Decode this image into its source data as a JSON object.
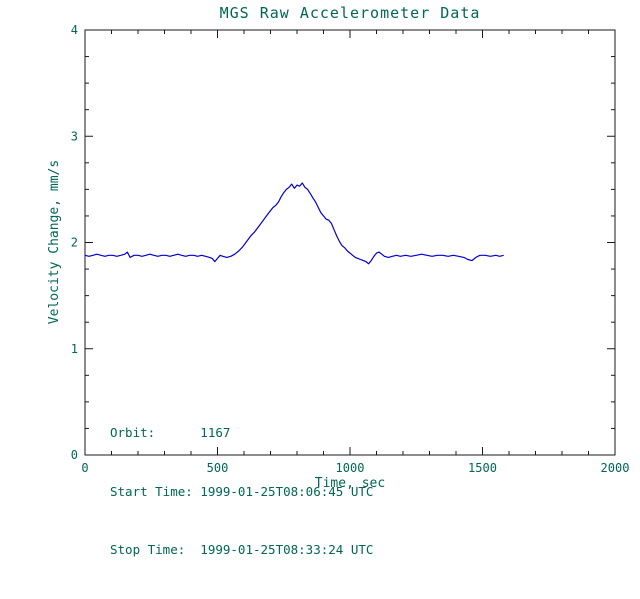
{
  "annotations": {
    "orbit": "Orbit:      1167",
    "start": "Start Time: 1999-01-25T08:06:45 UTC",
    "stop": "Stop Time:  1999-01-25T08:33:24 UTC"
  },
  "colors": {
    "background": "#ffffff",
    "text": "#006655",
    "axis": "#1a1a1a",
    "line": "#0000cc"
  },
  "chart_data": {
    "type": "line",
    "title": "MGS Raw Accelerometer Data",
    "xlabel": "Time, sec",
    "ylabel": "Velocity Change, mm/s",
    "xlim": [
      0,
      2000
    ],
    "ylim": [
      0,
      4
    ],
    "xticks": [
      0,
      500,
      1000,
      1500,
      2000
    ],
    "yticks": [
      0,
      1,
      2,
      3,
      4
    ],
    "x_major_step": 500,
    "x_minor_step": 100,
    "y_minor_step": 0.25,
    "grid": false,
    "legend": false,
    "series": [
      {
        "name": "velocity-change",
        "color": "#0000cc",
        "x": [
          0,
          15,
          30,
          45,
          60,
          75,
          90,
          105,
          120,
          135,
          150,
          160,
          170,
          185,
          200,
          215,
          230,
          245,
          260,
          275,
          290,
          305,
          320,
          335,
          350,
          365,
          380,
          395,
          410,
          425,
          440,
          455,
          470,
          480,
          490,
          500,
          510,
          520,
          535,
          550,
          565,
          580,
          595,
          610,
          625,
          640,
          655,
          670,
          685,
          700,
          710,
          720,
          730,
          740,
          750,
          760,
          770,
          780,
          790,
          800,
          810,
          820,
          830,
          840,
          850,
          860,
          870,
          880,
          890,
          900,
          910,
          920,
          930,
          940,
          950,
          960,
          970,
          980,
          990,
          1000,
          1010,
          1020,
          1030,
          1040,
          1050,
          1060,
          1070,
          1080,
          1090,
          1100,
          1110,
          1120,
          1130,
          1145,
          1160,
          1175,
          1190,
          1210,
          1230,
          1250,
          1270,
          1290,
          1310,
          1330,
          1350,
          1370,
          1390,
          1410,
          1430,
          1445,
          1460,
          1475,
          1490,
          1510,
          1530,
          1550,
          1565,
          1580
        ],
        "y": [
          1.88,
          1.87,
          1.88,
          1.89,
          1.88,
          1.87,
          1.88,
          1.88,
          1.87,
          1.88,
          1.89,
          1.91,
          1.86,
          1.88,
          1.88,
          1.87,
          1.88,
          1.89,
          1.88,
          1.87,
          1.88,
          1.88,
          1.87,
          1.88,
          1.89,
          1.88,
          1.87,
          1.88,
          1.88,
          1.87,
          1.88,
          1.87,
          1.86,
          1.85,
          1.82,
          1.85,
          1.88,
          1.87,
          1.86,
          1.87,
          1.89,
          1.92,
          1.96,
          2.01,
          2.06,
          2.1,
          2.15,
          2.2,
          2.25,
          2.3,
          2.33,
          2.35,
          2.38,
          2.43,
          2.47,
          2.5,
          2.52,
          2.55,
          2.51,
          2.54,
          2.53,
          2.56,
          2.52,
          2.5,
          2.46,
          2.42,
          2.38,
          2.33,
          2.28,
          2.25,
          2.22,
          2.21,
          2.18,
          2.12,
          2.06,
          2.01,
          1.97,
          1.95,
          1.92,
          1.9,
          1.88,
          1.86,
          1.85,
          1.84,
          1.83,
          1.82,
          1.8,
          1.83,
          1.87,
          1.9,
          1.91,
          1.89,
          1.87,
          1.86,
          1.87,
          1.88,
          1.87,
          1.88,
          1.87,
          1.88,
          1.89,
          1.88,
          1.87,
          1.88,
          1.88,
          1.87,
          1.88,
          1.87,
          1.86,
          1.84,
          1.83,
          1.86,
          1.88,
          1.88,
          1.87,
          1.88,
          1.87,
          1.88
        ]
      }
    ]
  }
}
